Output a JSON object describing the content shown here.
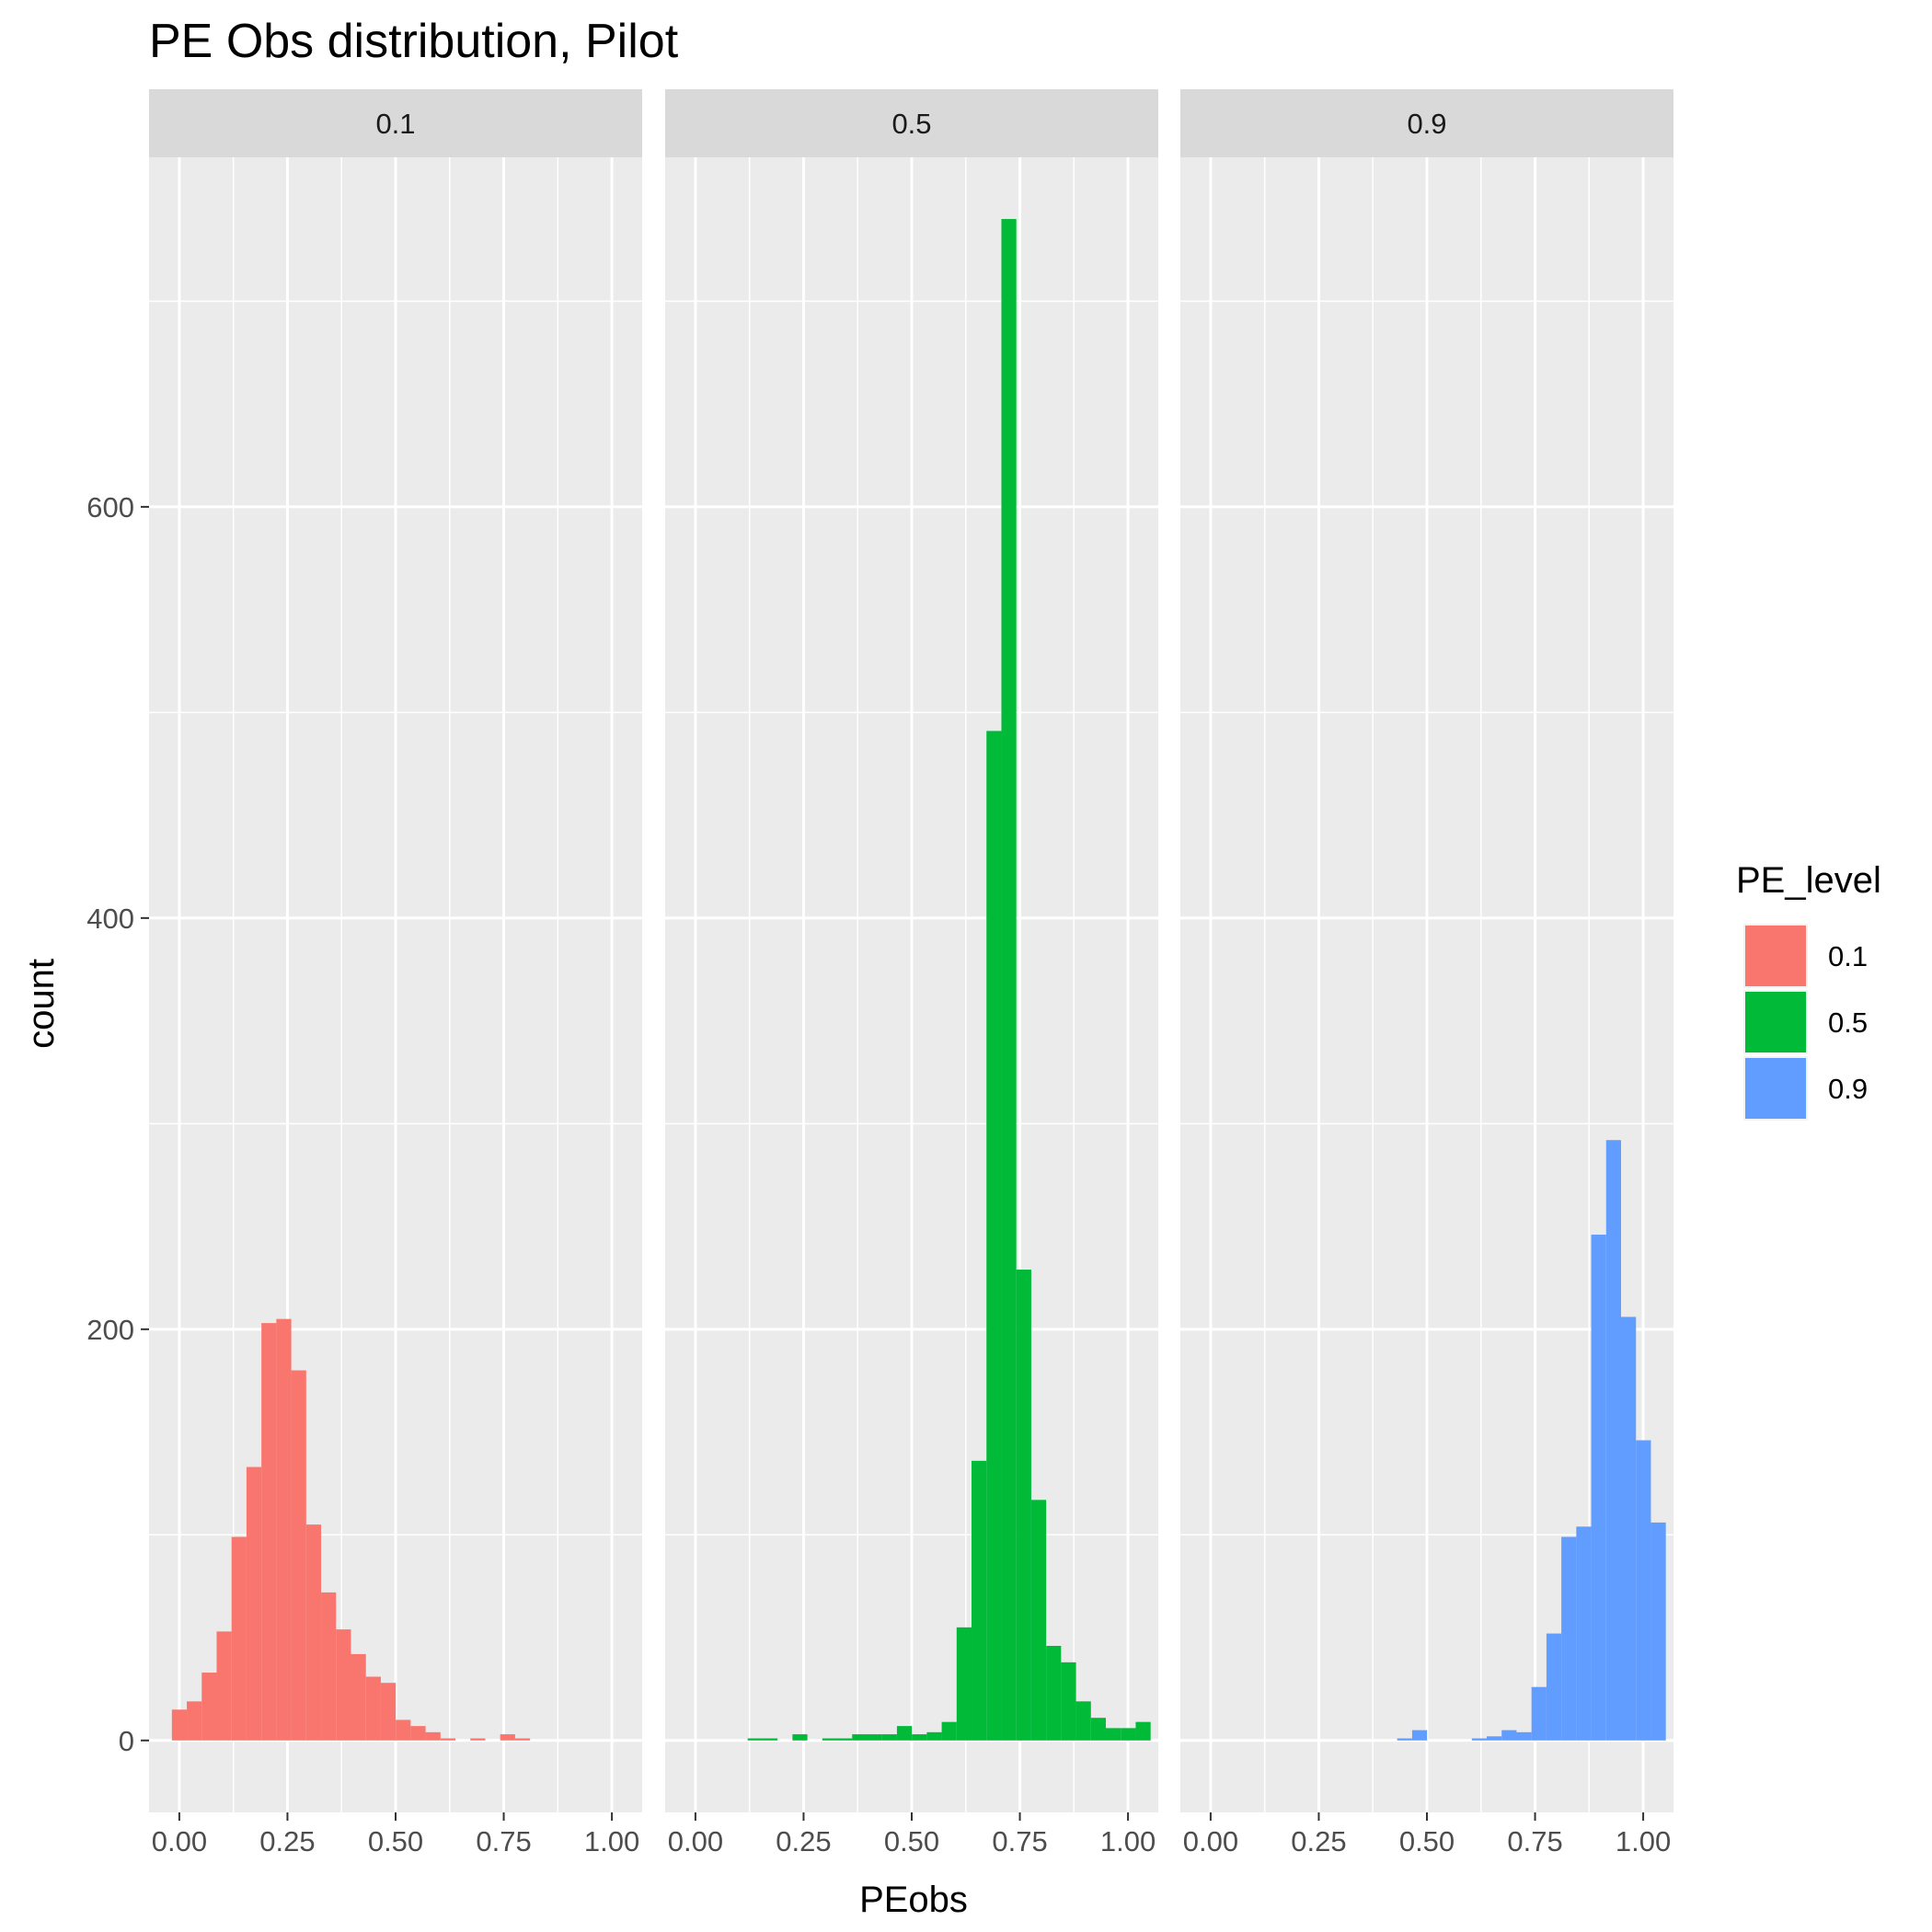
{
  "chart_data": {
    "type": "bar",
    "title": "PE Obs distribution, Pilot",
    "xlabel": "PEobs",
    "ylabel": "count",
    "xlim": [
      -0.07,
      1.07
    ],
    "ylim": [
      -35,
      770
    ],
    "x_ticks": [
      0,
      0.25,
      0.5,
      0.75,
      1
    ],
    "x_tick_labels": [
      "0.00",
      "0.25",
      "0.50",
      "0.75",
      "1.00"
    ],
    "y_ticks": [
      0,
      200,
      400,
      600
    ],
    "y_tick_labels": [
      "0",
      "200",
      "400",
      "600"
    ],
    "y_minor_ticks": [
      100,
      300,
      500,
      700
    ],
    "x_minor_ticks": [
      0.125,
      0.375,
      0.625,
      0.875
    ],
    "bin_start": -0.0172,
    "bin_width": 0.0345,
    "grid": true,
    "legend": {
      "title": "PE_level",
      "position": "right"
    },
    "panels": [
      {
        "name": "0.1",
        "color": "#F8766D",
        "counts": [
          15,
          19,
          33,
          53,
          99,
          133,
          203,
          205,
          180,
          105,
          72,
          54,
          42,
          31,
          28,
          10,
          7,
          4,
          1,
          0,
          1,
          0,
          3,
          1,
          0,
          0,
          0,
          0,
          0,
          0
        ]
      },
      {
        "name": "0.5",
        "color": "#00BA38",
        "counts": [
          0,
          0,
          0,
          0,
          1,
          1,
          0,
          3,
          0,
          1,
          1,
          3,
          3,
          3,
          7,
          3,
          4,
          9,
          55,
          136,
          491,
          740,
          229,
          117,
          46,
          38,
          19,
          11,
          6,
          6,
          9
        ]
      },
      {
        "name": "0.9",
        "color": "#619CFF",
        "counts": [
          0,
          0,
          0,
          0,
          0,
          0,
          0,
          0,
          0,
          0,
          0,
          0,
          0,
          1,
          5,
          0,
          0,
          0,
          1,
          2,
          5,
          4,
          26,
          52,
          99,
          104,
          246,
          292,
          206,
          146,
          106
        ]
      }
    ]
  }
}
